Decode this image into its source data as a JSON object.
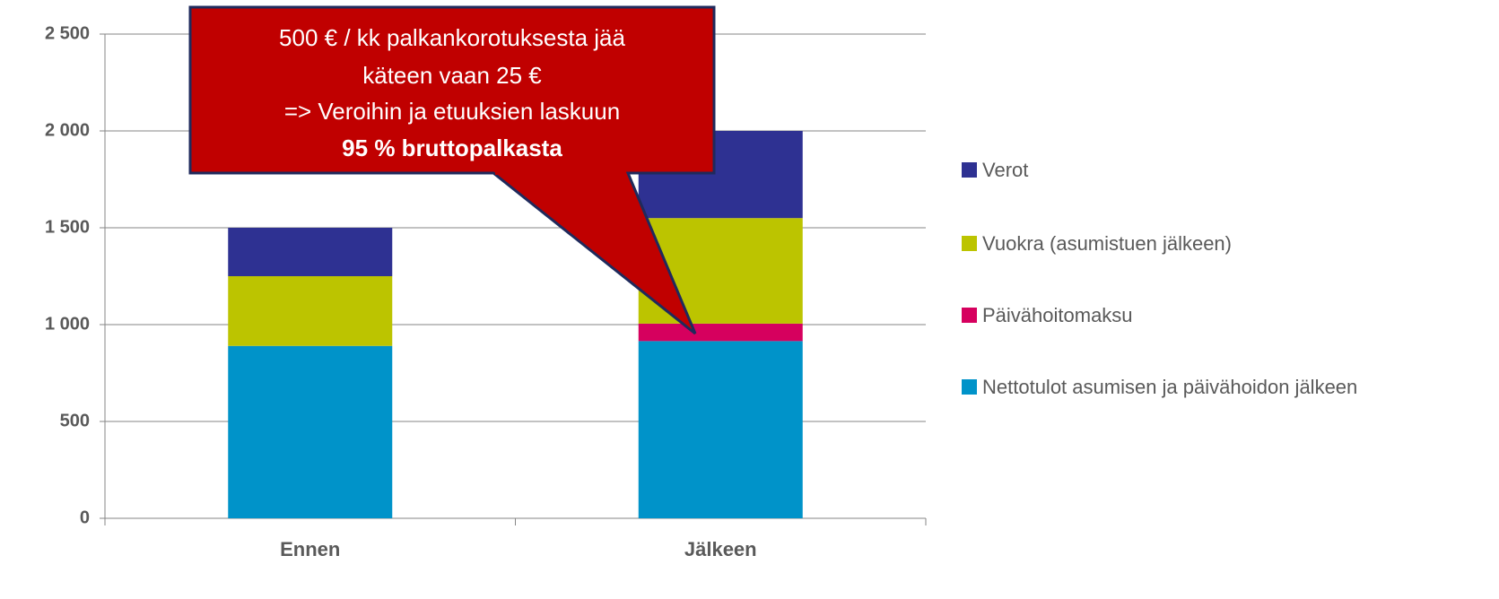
{
  "chart_data": {
    "type": "stacked_bar",
    "categories": [
      "Ennen",
      "Jälkeen"
    ],
    "series": [
      {
        "name": "Nettotulot asumisen ja päivähoidon jälkeen",
        "color": "#0093c9",
        "values": [
          890,
          915
        ]
      },
      {
        "name": "Päivähoitomaksu",
        "color": "#d6005e",
        "values": [
          0,
          90
        ]
      },
      {
        "name": "Vuokra (asumistuen jälkeen)",
        "color": "#bcc400",
        "values": [
          360,
          545
        ]
      },
      {
        "name": "Verot",
        "color": "#2e3192",
        "values": [
          250,
          450
        ]
      }
    ],
    "ylim": [
      0,
      2500
    ],
    "yticks": [
      0,
      500,
      {
        "value": 1000,
        "label": "1 000"
      },
      {
        "value": 1500,
        "label": "1 500"
      },
      {
        "value": 2000,
        "label": "2 000"
      },
      {
        "value": 2500,
        "label": "2 500"
      }
    ],
    "grid": true,
    "legend": "right",
    "annotation": {
      "lines": [
        "500 € / kk palkankorotuksesta jää",
        "käteen vaan 25 €",
        "=> Veroihin ja etuuksien laskuun",
        "95 % bruttopalkasta"
      ]
    }
  }
}
